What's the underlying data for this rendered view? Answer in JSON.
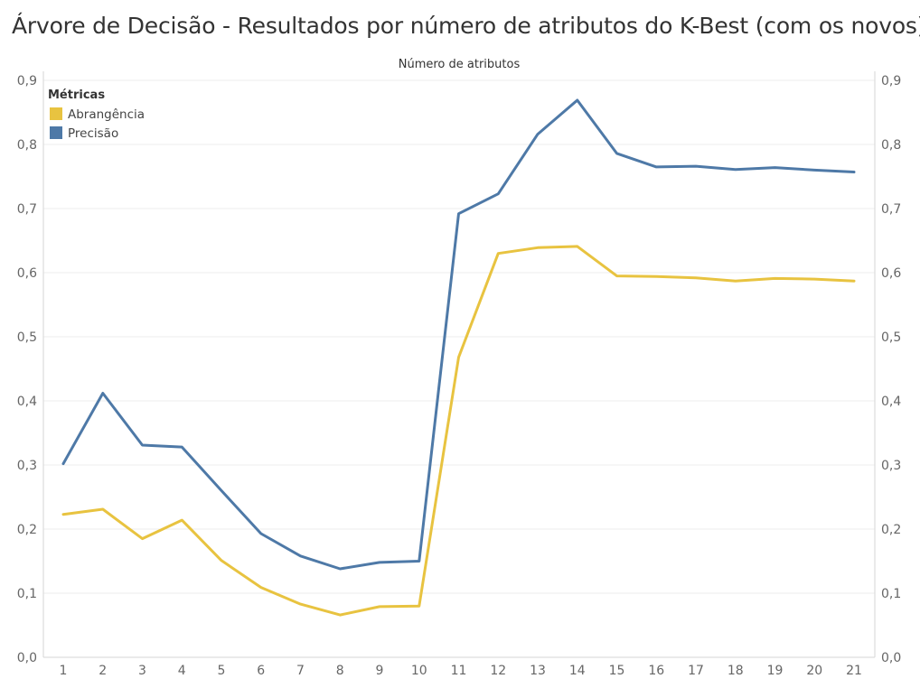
{
  "title": "Árvore de Decisão - Resultados por número de atributos do K-Best (com os novos)",
  "chart_data": {
    "type": "line",
    "title": "Árvore de Decisão - Resultados por número de atributos do K-Best (com os novos)",
    "xlabel": "Número de atributos",
    "ylabel": "",
    "x": [
      1,
      2,
      3,
      4,
      5,
      6,
      7,
      8,
      9,
      10,
      11,
      12,
      13,
      14,
      15,
      16,
      17,
      18,
      19,
      20,
      21
    ],
    "x_tick_labels": [
      "1",
      "2",
      "3",
      "4",
      "5",
      "6",
      "7",
      "8",
      "9",
      "10",
      "11",
      "12",
      "13",
      "14",
      "15",
      "16",
      "17",
      "18",
      "19",
      "20",
      "21"
    ],
    "ylim": [
      0,
      0.9
    ],
    "y_ticks": [
      0,
      0.1,
      0.2,
      0.3,
      0.4,
      0.5,
      0.6,
      0.7,
      0.8,
      0.9
    ],
    "y_tick_labels": [
      "0,0",
      "0,1",
      "0,2",
      "0,3",
      "0,4",
      "0,5",
      "0,6",
      "0,7",
      "0,8",
      "0,9"
    ],
    "grid": true,
    "dual_axis_labels": true,
    "legend": {
      "title": "Métricas",
      "placement": "top-left"
    },
    "series": [
      {
        "name": "Abrangência",
        "color": "#E8C340",
        "values": [
          0.223,
          0.231,
          0.185,
          0.214,
          0.151,
          0.109,
          0.083,
          0.066,
          0.079,
          0.08,
          0.468,
          0.63,
          0.639,
          0.641,
          0.595,
          0.594,
          0.592,
          0.587,
          0.591,
          0.59,
          0.587
        ]
      },
      {
        "name": "Precisão",
        "color": "#4E79A7",
        "values": [
          0.302,
          0.412,
          0.331,
          0.328,
          0.26,
          0.193,
          0.158,
          0.138,
          0.148,
          0.15,
          0.692,
          0.723,
          0.816,
          0.869,
          0.786,
          0.765,
          0.766,
          0.761,
          0.764,
          0.76,
          0.757
        ]
      }
    ]
  }
}
